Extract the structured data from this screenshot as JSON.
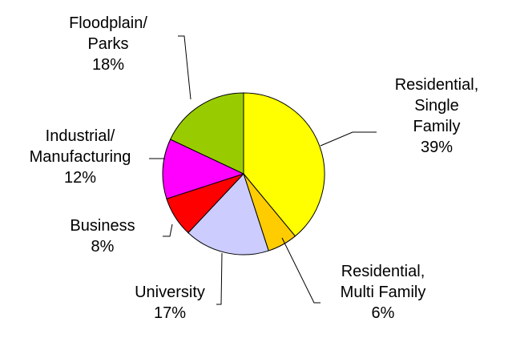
{
  "chart_data": {
    "type": "pie",
    "categories": [
      "Residential,\nSingle Family",
      "Residential,\nMulti Family",
      "University",
      "Business",
      "Industrial/\nManufacturing",
      "Floodplain/\nParks"
    ],
    "values": [
      39,
      6,
      17,
      8,
      12,
      18
    ],
    "value_labels": [
      "39%",
      "6%",
      "17%",
      "8%",
      "12%",
      "18%"
    ],
    "colors": [
      "#ffff00",
      "#ffcc00",
      "#ccccff",
      "#ff0000",
      "#ff00ff",
      "#99cc00"
    ]
  }
}
